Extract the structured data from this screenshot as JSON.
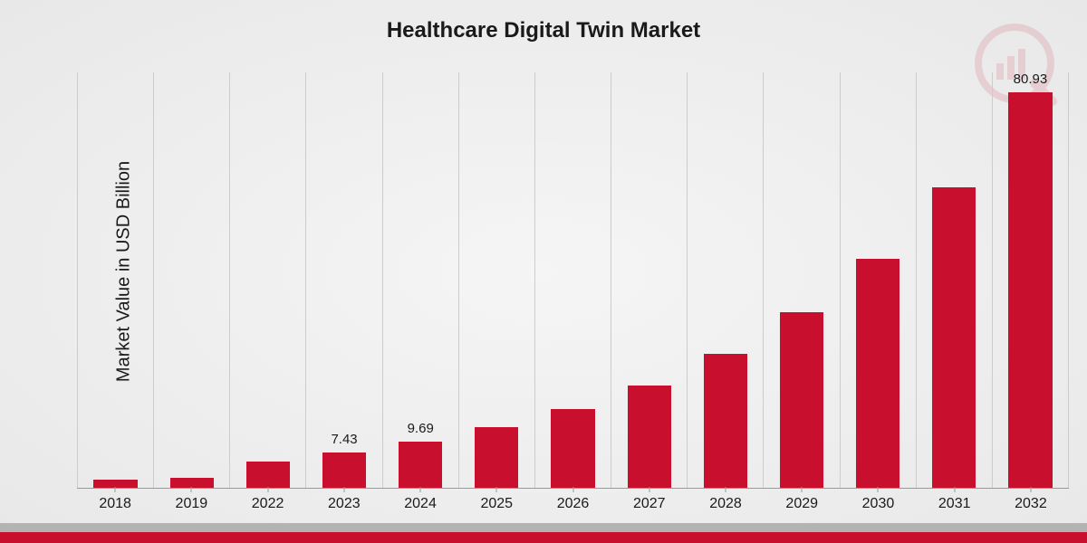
{
  "chart": {
    "type": "bar",
    "title": "Healthcare Digital Twin Market",
    "y_label": "Market Value in USD Billion",
    "title_fontsize": 24,
    "label_fontsize": 20,
    "tick_fontsize": 16,
    "value_label_fontsize": 15,
    "bar_color": "#c8102e",
    "grid_color": "#cccccc",
    "text_color": "#1a1a1a",
    "background": "radial-gradient(#f5f5f5, #e8e8e8)",
    "footer_red": "#c8102e",
    "footer_grey": "#b3b3b3",
    "watermark_color": "#c8102e",
    "y_max": 85,
    "bar_width_ratio": 0.58,
    "categories": [
      "2018",
      "2019",
      "2022",
      "2023",
      "2024",
      "2025",
      "2026",
      "2027",
      "2028",
      "2029",
      "2030",
      "2031",
      "2032"
    ],
    "values": [
      1.8,
      2.3,
      5.5,
      7.43,
      9.69,
      12.5,
      16.3,
      21.0,
      27.5,
      36.0,
      47.0,
      61.5,
      80.93
    ],
    "show_labels": [
      false,
      false,
      false,
      true,
      true,
      false,
      false,
      false,
      false,
      false,
      false,
      false,
      true
    ],
    "value_labels": [
      "",
      "",
      "",
      "7.43",
      "9.69",
      "",
      "",
      "",
      "",
      "",
      "",
      "",
      "80.93"
    ]
  }
}
